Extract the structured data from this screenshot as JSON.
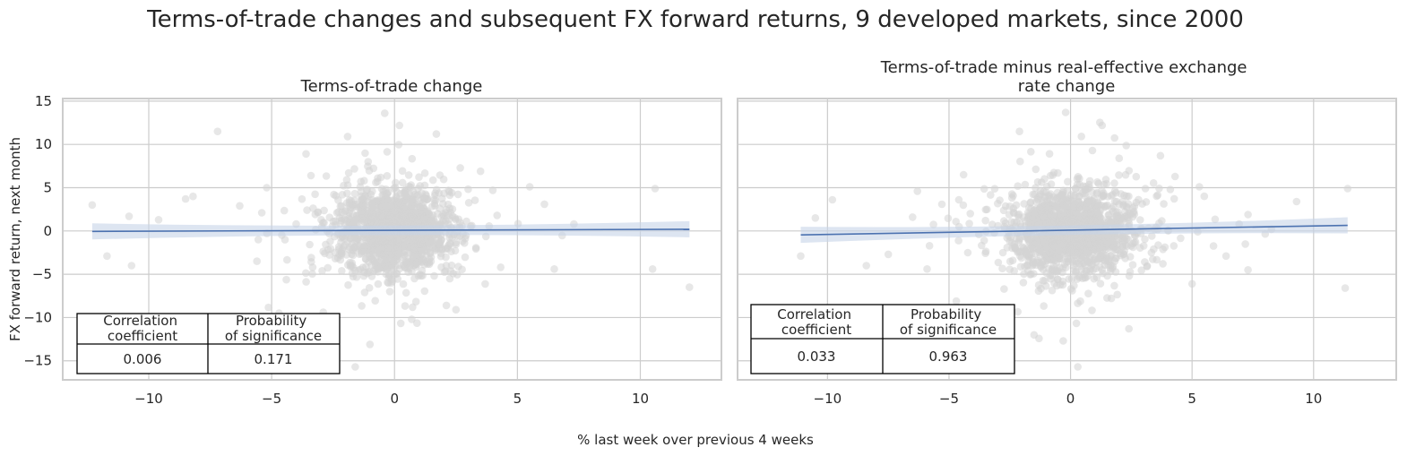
{
  "figure": {
    "suptitle": "Terms-of-trade changes and subsequent FX forward returns, 9 developed markets, since 2000",
    "xlabel": "% last week over previous 4 weeks"
  },
  "chart_data": [
    {
      "type": "scatter",
      "title": "Terms-of-trade change",
      "xlabel": "",
      "ylabel": "FX forward return, next month",
      "xlim": [
        -13.5,
        13.3
      ],
      "ylim": [
        -17.2,
        15.3
      ],
      "xticks": [
        -10,
        -5,
        0,
        5,
        10
      ],
      "yticks": [
        -15,
        -10,
        -5,
        0,
        5,
        10,
        15
      ],
      "grid": true,
      "point_color": "#d3d3d3",
      "regression": {
        "x": [
          -12.3,
          12.0
        ],
        "y": [
          -0.05,
          0.2
        ],
        "color": "#4c72b0",
        "ci_color": "#c7d4e8"
      },
      "stats_table": {
        "headers": [
          "Correlation\ncoefficient",
          "Probability\nof significance"
        ],
        "values": [
          "0.006",
          "0.171"
        ]
      },
      "outliers": [
        [
          -12.3,
          3.0
        ],
        [
          -11.7,
          -2.9
        ],
        [
          -10.7,
          -4.0
        ],
        [
          -10.8,
          1.7
        ],
        [
          -9.6,
          1.3
        ],
        [
          -8.5,
          3.7
        ],
        [
          -8.2,
          4.0
        ],
        [
          -7.2,
          11.5
        ],
        [
          -6.3,
          2.9
        ],
        [
          -5.6,
          -3.5
        ],
        [
          -5.4,
          2.1
        ],
        [
          -5.2,
          5.0
        ],
        [
          -4.7,
          -9.5
        ],
        [
          -4.0,
          0.8
        ],
        [
          -3.6,
          8.9
        ],
        [
          -3.4,
          6.4
        ],
        [
          -2.9,
          -9.4
        ],
        [
          -1.6,
          -15.7
        ],
        [
          -1.0,
          -13.1
        ],
        [
          -0.4,
          13.6
        ],
        [
          0.2,
          12.2
        ],
        [
          0.7,
          -10.2
        ],
        [
          1.7,
          11.2
        ],
        [
          2.5,
          -9.1
        ],
        [
          3.5,
          6.9
        ],
        [
          4.0,
          4.7
        ],
        [
          5.5,
          5.1
        ],
        [
          6.1,
          3.1
        ],
        [
          6.5,
          -4.4
        ],
        [
          7.3,
          0.8
        ],
        [
          10.5,
          -4.4
        ],
        [
          10.6,
          4.9
        ],
        [
          12.0,
          -6.5
        ]
      ],
      "cluster": {
        "count": 1400,
        "x_sd": 1.15,
        "y_sd": 2.5,
        "seed": 7
      }
    },
    {
      "type": "scatter",
      "title": "Terms-of-trade minus real-effective exchange\nrate change",
      "xlabel": "",
      "ylabel": "",
      "xlim": [
        -13.7,
        13.4
      ],
      "ylim": [
        -17.2,
        15.3
      ],
      "xticks": [
        -10,
        -5,
        0,
        5,
        10
      ],
      "yticks": [
        -15,
        -10,
        -5,
        0,
        5,
        10,
        15
      ],
      "grid": true,
      "point_color": "#d3d3d3",
      "regression": {
        "x": [
          -11.1,
          11.4
        ],
        "y": [
          -0.45,
          0.65
        ],
        "color": "#4c72b0",
        "ci_color": "#c7d4e8"
      },
      "stats_table": {
        "headers": [
          "Correlation\ncoefficient",
          "Probability\nof significance"
        ],
        "values": [
          "0.033",
          "0.963"
        ]
      },
      "outliers": [
        [
          -11.1,
          -2.9
        ],
        [
          -10.5,
          1.5
        ],
        [
          -9.8,
          3.6
        ],
        [
          -8.4,
          -4.0
        ],
        [
          -7.5,
          -2.7
        ],
        [
          -6.5,
          1.6
        ],
        [
          -6.3,
          4.6
        ],
        [
          -5.9,
          -4.4
        ],
        [
          -4.7,
          -8.1
        ],
        [
          -4.4,
          6.5
        ],
        [
          -3.8,
          -9.4
        ],
        [
          -2.1,
          11.5
        ],
        [
          -1.5,
          -12.0
        ],
        [
          -0.3,
          -12.7
        ],
        [
          -0.2,
          13.7
        ],
        [
          0.3,
          -15.7
        ],
        [
          0.9,
          9.3
        ],
        [
          1.3,
          12.2
        ],
        [
          2.0,
          8.4
        ],
        [
          2.4,
          -11.3
        ],
        [
          3.7,
          8.7
        ],
        [
          4.3,
          6.3
        ],
        [
          5.0,
          -6.1
        ],
        [
          5.3,
          5.1
        ],
        [
          6.4,
          -2.9
        ],
        [
          7.3,
          1.9
        ],
        [
          7.3,
          -4.5
        ],
        [
          9.3,
          3.4
        ],
        [
          11.4,
          4.9
        ],
        [
          11.3,
          -6.6
        ]
      ],
      "cluster": {
        "count": 1400,
        "x_sd": 1.3,
        "y_sd": 2.5,
        "seed": 13
      }
    }
  ]
}
